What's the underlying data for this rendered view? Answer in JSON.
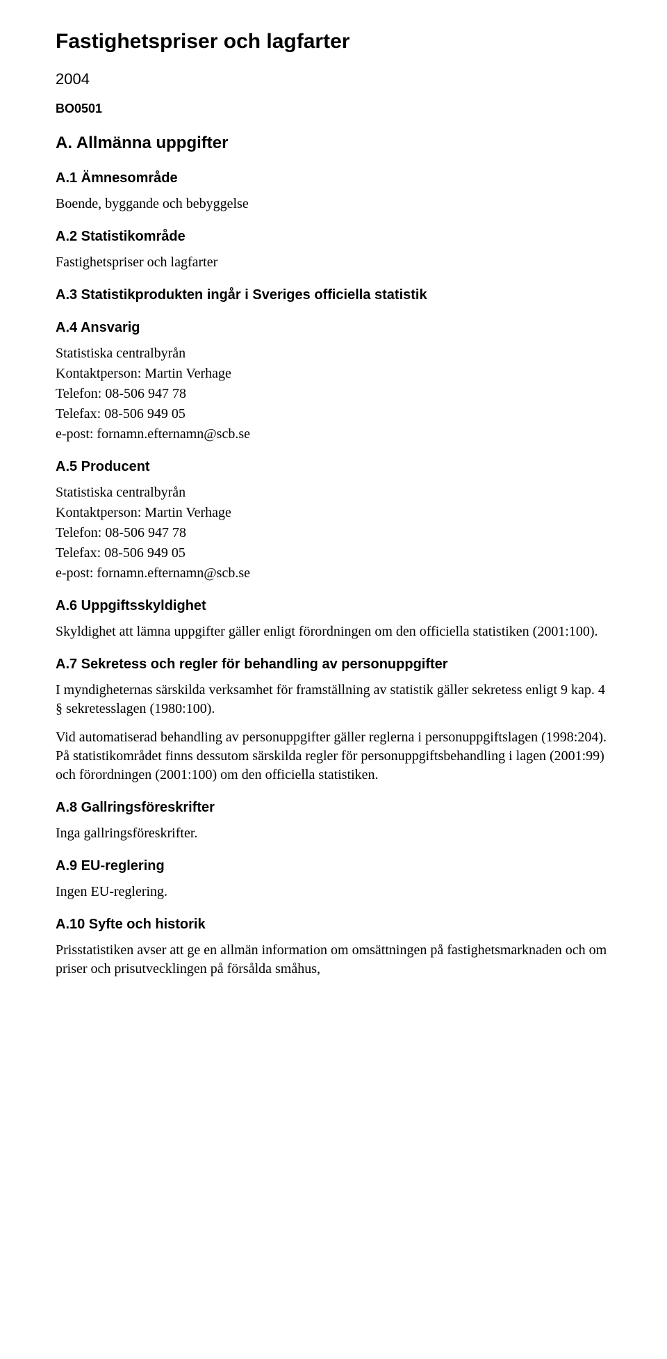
{
  "doc": {
    "title": "Fastighetspriser och lagfarter",
    "year": "2004",
    "code": "BO0501",
    "sectionA": {
      "heading": "A. Allmänna uppgifter",
      "a1": {
        "heading": "A.1 Ämnesområde",
        "body": "Boende, byggande och bebyggelse"
      },
      "a2": {
        "heading": "A.2 Statistikområde",
        "body": "Fastighetspriser och lagfarter"
      },
      "a3": {
        "heading": "A.3 Statistikprodukten ingår i Sveriges officiella statistik"
      },
      "a4": {
        "heading": "A.4 Ansvarig",
        "org": "Statistiska centralbyrån",
        "contact": "Kontaktperson: Martin Verhage",
        "phone": "Telefon: 08-506 947 78",
        "fax": "Telefax: 08-506 949 05",
        "email": "e-post: fornamn.efternamn@scb.se"
      },
      "a5": {
        "heading": "A.5 Producent",
        "org": "Statistiska centralbyrån",
        "contact": "Kontaktperson: Martin Verhage",
        "phone": "Telefon: 08-506 947 78",
        "fax": "Telefax: 08-506 949 05",
        "email": "e-post: fornamn.efternamn@scb.se"
      },
      "a6": {
        "heading": "A.6 Uppgiftsskyldighet",
        "body": "Skyldighet att lämna uppgifter gäller enligt förordningen om den officiella statistiken (2001:100)."
      },
      "a7": {
        "heading": "A.7 Sekretess och regler för behandling av personuppgifter",
        "p1": "I myndigheternas särskilda verksamhet för framställning av statistik gäller sekretess enligt 9 kap. 4 § sekretesslagen (1980:100).",
        "p2": "Vid automatiserad behandling av personuppgifter gäller reglerna i personuppgiftslagen (1998:204). På statistikområdet finns dessutom särskilda regler för personuppgiftsbehandling i lagen (2001:99) och förordningen (2001:100) om den officiella statistiken."
      },
      "a8": {
        "heading": "A.8 Gallringsföreskrifter",
        "body": "Inga gallringsföreskrifter."
      },
      "a9": {
        "heading": "A.9 EU-reglering",
        "body": "Ingen EU-reglering."
      },
      "a10": {
        "heading": "A.10 Syfte och historik",
        "body": "Prisstatistiken avser att ge en allmän information om omsättningen på fastighetsmarknaden och om priser och prisutvecklingen på försålda småhus,"
      }
    }
  }
}
